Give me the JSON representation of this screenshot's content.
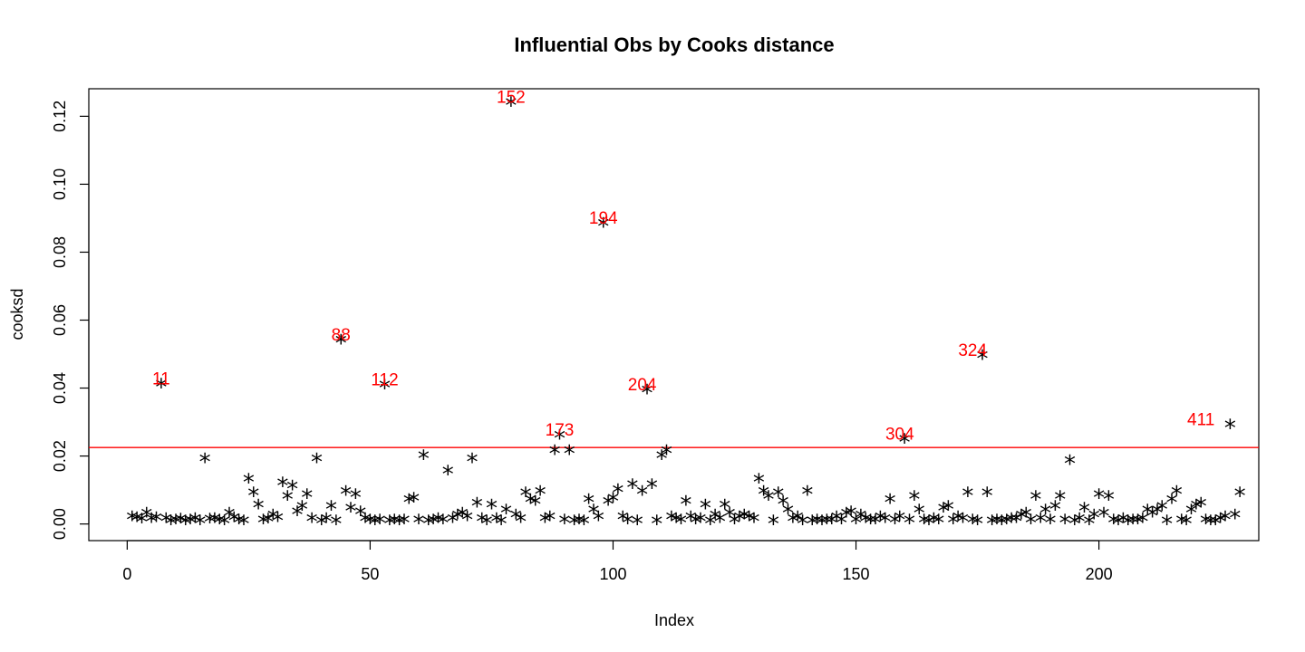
{
  "chart_data": {
    "type": "scatter",
    "title": "Influential Obs by Cooks distance",
    "xlabel": "Index",
    "ylabel": "cooksd",
    "xlim": [
      -7.9,
      232.9
    ],
    "ylim": [
      -0.0049,
      0.1281
    ],
    "x_ticks": [
      0,
      50,
      100,
      150,
      200
    ],
    "x_tick_labels": [
      "0",
      "50",
      "100",
      "150",
      "200"
    ],
    "y_ticks": [
      0.0,
      0.02,
      0.04,
      0.06,
      0.08,
      0.1,
      0.12
    ],
    "y_tick_labels": [
      "0.00",
      "0.02",
      "0.04",
      "0.06",
      "0.08",
      "0.10",
      "0.12"
    ],
    "marker": "*",
    "marker_color": "#000000",
    "threshold": {
      "y": 0.0225,
      "color": "#ff0000"
    },
    "annotation_color": "#ff0000",
    "annotations": [
      {
        "x": 7,
        "y": 0.0405,
        "label": "11"
      },
      {
        "x": 44,
        "y": 0.0535,
        "label": "88"
      },
      {
        "x": 53,
        "y": 0.0403,
        "label": "112"
      },
      {
        "x": 79,
        "y": 0.1235,
        "label": "152"
      },
      {
        "x": 89,
        "y": 0.0255,
        "label": "173"
      },
      {
        "x": 98,
        "y": 0.0878,
        "label": "194"
      },
      {
        "x": 106,
        "y": 0.0388,
        "label": "204"
      },
      {
        "x": 159,
        "y": 0.0243,
        "label": "304"
      },
      {
        "x": 174,
        "y": 0.049,
        "label": "324"
      },
      {
        "x": 221,
        "y": 0.0285,
        "label": "411"
      }
    ],
    "values": [
      0.0015,
      0.0012,
      0.0008,
      0.0025,
      0.001,
      0.0012,
      0.0405,
      0.001,
      0.0003,
      0.0005,
      0.0008,
      0.0003,
      0.0005,
      0.001,
      0.0003,
      0.0185,
      0.0008,
      0.001,
      0.0005,
      0.0003,
      0.0025,
      0.0012,
      0.0005,
      0.0003,
      0.0125,
      0.0085,
      0.005,
      0.0005,
      0.0008,
      0.002,
      0.0012,
      0.0115,
      0.0075,
      0.0105,
      0.003,
      0.0045,
      0.008,
      0.001,
      0.0185,
      0.0003,
      0.001,
      0.0045,
      0.0003,
      0.0535,
      0.009,
      0.004,
      0.008,
      0.003,
      0.001,
      0.0005,
      0.0003,
      0.0005,
      0.0403,
      0.0003,
      0.0005,
      0.0003,
      0.0005,
      0.0065,
      0.007,
      0.0005,
      0.0195,
      0.0003,
      0.0005,
      0.001,
      0.0005,
      0.015,
      0.001,
      0.002,
      0.0025,
      0.0015,
      0.0185,
      0.0055,
      0.001,
      0.0003,
      0.005,
      0.001,
      0.0003,
      0.0035,
      0.1235,
      0.002,
      0.001,
      0.0085,
      0.0065,
      0.006,
      0.009,
      0.001,
      0.0015,
      0.021,
      0.0255,
      0.0005,
      0.021,
      0.0003,
      0.0005,
      0.0003,
      0.0065,
      0.0035,
      0.0015,
      0.0878,
      0.006,
      0.007,
      0.0095,
      0.0015,
      0.0005,
      0.011,
      0.0003,
      0.009,
      0.0388,
      0.011,
      0.0003,
      0.0195,
      0.021,
      0.0015,
      0.001,
      0.0005,
      0.006,
      0.0015,
      0.0005,
      0.001,
      0.005,
      0.0003,
      0.002,
      0.001,
      0.005,
      0.0025,
      0.0005,
      0.0015,
      0.002,
      0.0015,
      0.001,
      0.0125,
      0.009,
      0.0075,
      0.0003,
      0.0085,
      0.006,
      0.0035,
      0.001,
      0.0015,
      0.0003,
      0.009,
      0.0003,
      0.0005,
      0.0003,
      0.0005,
      0.0005,
      0.0015,
      0.0005,
      0.0025,
      0.003,
      0.0005,
      0.002,
      0.001,
      0.0005,
      0.0005,
      0.0015,
      0.001,
      0.0065,
      0.0005,
      0.0015,
      0.0243,
      0.0005,
      0.0075,
      0.0035,
      0.0005,
      0.0003,
      0.001,
      0.0005,
      0.004,
      0.0045,
      0.0005,
      0.0015,
      0.001,
      0.0085,
      0.0005,
      0.0003,
      0.049,
      0.0085,
      0.0003,
      0.0005,
      0.0003,
      0.0005,
      0.001,
      0.001,
      0.002,
      0.0025,
      0.0005,
      0.0075,
      0.001,
      0.0035,
      0.0005,
      0.0045,
      0.0075,
      0.0005,
      0.018,
      0.0003,
      0.001,
      0.004,
      0.0003,
      0.002,
      0.008,
      0.0025,
      0.0075,
      0.0005,
      0.0003,
      0.001,
      0.0003,
      0.0005,
      0.0005,
      0.001,
      0.0035,
      0.0025,
      0.0035,
      0.0045,
      0.0003,
      0.0065,
      0.009,
      0.0005,
      0.0003,
      0.0035,
      0.005,
      0.0055,
      0.0005,
      0.0003,
      0.0003,
      0.001,
      0.0015,
      0.0285,
      0.002,
      0.0085
    ]
  }
}
